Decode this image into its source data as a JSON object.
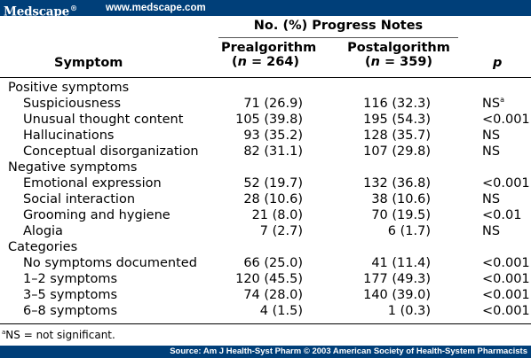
{
  "header": {
    "logo_text": "Medscape",
    "logo_reg": "®",
    "url": "www.medscape.com"
  },
  "table": {
    "group_header": "No. (%) Progress Notes",
    "columns": {
      "symptom": "Symptom",
      "pre_name": "Prealgorithm",
      "pre_n_open": "(",
      "pre_n_var": "n",
      "pre_n_rest": " = 264)",
      "post_name": "Postalgorithm",
      "post_n_open": "(",
      "post_n_var": "n",
      "post_n_rest": " = 359)",
      "p": "p"
    },
    "rows": [
      {
        "label": "Positive symptoms",
        "pre": "",
        "post": "",
        "p": "",
        "p_sup": ""
      },
      {
        "label": "Suspiciousness",
        "pre": "71 (26.9)",
        "post": "116 (32.3)",
        "p": "NS",
        "p_sup": "a"
      },
      {
        "label": "Unusual thought content",
        "pre": "105 (39.8)",
        "post": "195 (54.3)",
        "p": "<0.001",
        "p_sup": ""
      },
      {
        "label": "Hallucinations",
        "pre": "93 (35.2)",
        "post": "128 (35.7)",
        "p": "NS",
        "p_sup": ""
      },
      {
        "label": "Conceptual disorganization",
        "pre": "82 (31.1)",
        "post": "107 (29.8)",
        "p": "NS",
        "p_sup": ""
      },
      {
        "label": "Negative symptoms",
        "pre": "",
        "post": "",
        "p": "",
        "p_sup": ""
      },
      {
        "label": "Emotional expression",
        "pre": "52 (19.7)",
        "post": "132 (36.8)",
        "p": "<0.001",
        "p_sup": ""
      },
      {
        "label": "Social interaction",
        "pre": "28 (10.6)",
        "post": "38 (10.6)",
        "p": "NS",
        "p_sup": ""
      },
      {
        "label": "Grooming and hygiene",
        "pre": "21 (8.0)",
        "post": "70 (19.5)",
        "p": "<0.01",
        "p_sup": ""
      },
      {
        "label": "Alogia",
        "pre": "7 (2.7)",
        "post": "6 (1.7)",
        "p": "NS",
        "p_sup": ""
      },
      {
        "label": "Categories",
        "pre": "",
        "post": "",
        "p": "",
        "p_sup": ""
      },
      {
        "label": "No symptoms documented",
        "pre": "66 (25.0)",
        "post": "41 (11.4)",
        "p": "<0.001",
        "p_sup": ""
      },
      {
        "label": "1–2 symptoms",
        "pre": "120 (45.5)",
        "post": "177 (49.3)",
        "p": "<0.001",
        "p_sup": ""
      },
      {
        "label": "3–5 symptoms",
        "pre": "74 (28.0)",
        "post": "140 (39.0)",
        "p": "<0.001",
        "p_sup": ""
      },
      {
        "label": "6–8 symptoms",
        "pre": "4 (1.5)",
        "post": "1 (0.3)",
        "p": "<0.001",
        "p_sup": ""
      }
    ],
    "section_rows": [
      0,
      5,
      10
    ]
  },
  "footnote": {
    "sup": "a",
    "text": "NS = not significant."
  },
  "footer": {
    "source": "Source: Am J Health-Syst Pharm © 2003 American Society of Health-System Pharmacists"
  },
  "colors": {
    "bar_blue": "#003f79",
    "text": "#000000",
    "background": "#ffffff"
  }
}
